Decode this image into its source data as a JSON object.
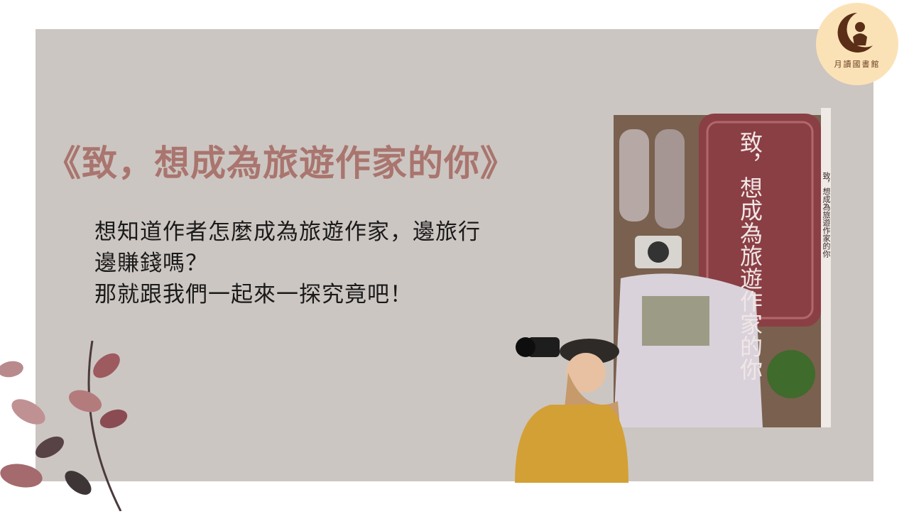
{
  "slide": {
    "title": "《致，想成為旅遊作家的你》",
    "body_lines": [
      "想知道作者怎麼成為旅遊作家，邊旅行",
      "邊賺錢嗎？",
      "那就跟我們一起來一探究竟吧！"
    ]
  },
  "logo": {
    "label": "月讀國書館"
  },
  "book": {
    "cover_title": "致，想成為旅遊作家的你",
    "spine_title": "致，想成為旅遊作家的你"
  },
  "colors": {
    "panel": "#ccc6c2",
    "title": "#a9756e",
    "logo_bg": "#fbe2b6",
    "suitcase": "#8a3f44"
  }
}
